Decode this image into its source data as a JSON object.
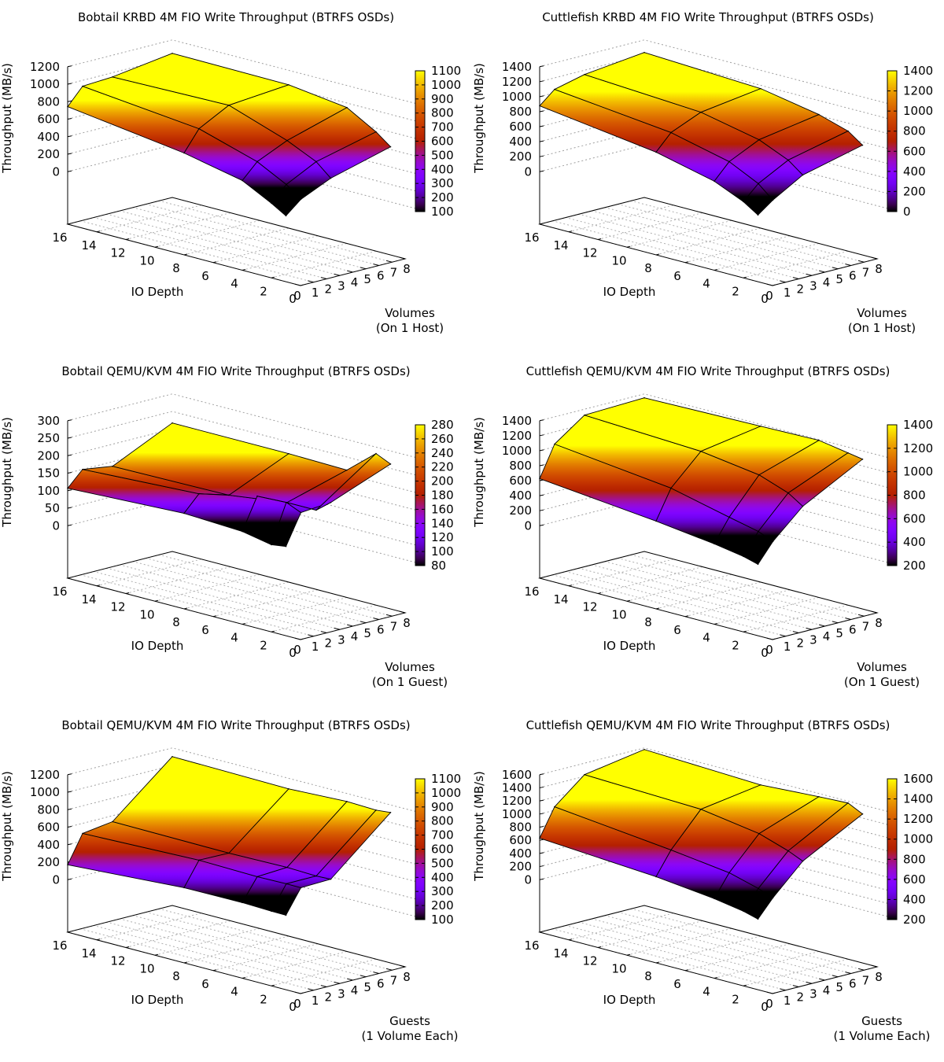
{
  "chart_data": [
    {
      "type": "surface3d",
      "title": "Bobtail KRBD 4M FIO Write Throughput (BTRFS OSDs)",
      "xlabel": "IO Depth",
      "ylabel": [
        "Volumes",
        "(On 1 Host)"
      ],
      "zlabel": "Throughput (MB/s)",
      "x_ticks": [
        "0",
        "2",
        "4",
        "6",
        "8",
        "10",
        "12",
        "14",
        "16"
      ],
      "y_ticks": [
        "0",
        "1",
        "2",
        "3",
        "4",
        "5",
        "6",
        "7",
        "8"
      ],
      "z_ticks": [
        "0",
        "200",
        "400",
        "600",
        "800",
        "1000",
        "1200"
      ],
      "zlim": [
        0,
        1200
      ],
      "cb_ticks": [
        "100",
        "200",
        "300",
        "400",
        "500",
        "600",
        "700",
        "800",
        "900",
        "1000",
        "1100"
      ],
      "cblim": [
        100,
        1100
      ],
      "io_depth": [
        1,
        2,
        4,
        8,
        16
      ],
      "volumes": [
        1,
        2,
        4,
        8
      ],
      "values": [
        [
          153,
          298,
          452,
          636
        ],
        [
          253,
          424,
          597,
          763
        ],
        [
          425,
          597,
          751,
          953
        ],
        [
          564,
          798,
          979,
          1038
        ],
        [
          743,
          933,
          952,
          1047
        ]
      ]
    },
    {
      "type": "surface3d",
      "title": "Cuttlefish KRBD 4M FIO Write Throughput (BTRFS OSDs)",
      "xlabel": "IO Depth",
      "ylabel": [
        "Volumes",
        "(On 1 Host)"
      ],
      "zlabel": "Throughput (MB/s)",
      "x_ticks": [
        "0",
        "2",
        "4",
        "6",
        "8",
        "10",
        "12",
        "14",
        "16"
      ],
      "y_ticks": [
        "0",
        "1",
        "2",
        "3",
        "4",
        "5",
        "6",
        "7",
        "8"
      ],
      "z_ticks": [
        "0",
        "200",
        "400",
        "600",
        "800",
        "1000",
        "1200",
        "1400"
      ],
      "zlim": [
        0,
        1400
      ],
      "cb_ticks": [
        "0",
        "200",
        "400",
        "600",
        "800",
        "1000",
        "1200",
        "1400"
      ],
      "cblim": [
        0,
        1400
      ],
      "io_depth": [
        1,
        2,
        4,
        8,
        16
      ],
      "volumes": [
        1,
        2,
        4,
        8
      ],
      "values": [
        [
          189,
          338,
          570,
          764
        ],
        [
          316,
          506,
          718,
          901
        ],
        [
          486,
          697,
          887,
          1019
        ],
        [
          669,
          880,
          1049,
          1160
        ],
        [
          878,
          1047,
          1143,
          1233
        ]
      ]
    },
    {
      "type": "surface3d",
      "title": "Bobtail QEMU/KVM 4M FIO Write Throughput (BTRFS OSDs)",
      "xlabel": "IO Depth",
      "ylabel": [
        "Volumes",
        "(On 1 Guest)"
      ],
      "zlabel": "Throughput (MB/s)",
      "x_ticks": [
        "0",
        "2",
        "4",
        "6",
        "8",
        "10",
        "12",
        "14",
        "16"
      ],
      "y_ticks": [
        "0",
        "1",
        "2",
        "3",
        "4",
        "5",
        "6",
        "7",
        "8"
      ],
      "z_ticks": [
        "0",
        "50",
        "100",
        "150",
        "200",
        "250",
        "300"
      ],
      "zlim": [
        0,
        300
      ],
      "cb_ticks": [
        "80",
        "100",
        "120",
        "140",
        "160",
        "180",
        "200",
        "220",
        "240",
        "260",
        "280"
      ],
      "cblim": [
        80,
        280
      ],
      "io_depth": [
        1,
        2,
        4,
        8,
        16
      ],
      "volumes": [
        1,
        2,
        4,
        8
      ],
      "values": [
        [
          105,
          191,
          198,
          264
        ],
        [
          99,
          209,
          165,
          283
        ],
        [
          115,
          205,
          165,
          214
        ],
        [
          123,
          168,
          142,
          217
        ],
        [
          107,
          150,
          137,
          217
        ]
      ]
    },
    {
      "type": "surface3d",
      "title": "Cuttlefish QEMU/KVM 4M FIO Write Throughput (BTRFS OSDs)",
      "xlabel": "IO Depth",
      "ylabel": [
        "Volumes",
        "(On 1 Guest)"
      ],
      "zlabel": "Throughput (MB/s)",
      "x_ticks": [
        "0",
        "2",
        "4",
        "6",
        "8",
        "10",
        "12",
        "14",
        "16"
      ],
      "y_ticks": [
        "0",
        "1",
        "2",
        "3",
        "4",
        "5",
        "6",
        "7",
        "8"
      ],
      "z_ticks": [
        "0",
        "200",
        "400",
        "600",
        "800",
        "1000",
        "1200",
        "1400"
      ],
      "zlim": [
        0,
        1400
      ],
      "cb_ticks": [
        "200",
        "400",
        "600",
        "800",
        "1000",
        "1200",
        "1400"
      ],
      "cblim": [
        200,
        1400
      ],
      "io_depth": [
        1,
        2,
        4,
        8,
        16
      ],
      "volumes": [
        1,
        2,
        4,
        8
      ],
      "values": [
        [
          252,
          505,
          873,
          1297
        ],
        [
          306,
          589,
          1000,
          1330
        ],
        [
          371,
          676,
          1138,
          1395
        ],
        [
          470,
          859,
          1248,
          1379
        ],
        [
          627,
          1037,
          1321,
          1348
        ]
      ]
    },
    {
      "type": "surface3d",
      "title": "Bobtail QEMU/KVM 4M FIO Write Throughput (BTRFS OSDs)",
      "xlabel": "IO Depth",
      "ylabel": [
        "Guests",
        "(1 Volume Each)"
      ],
      "zlabel": "Throughput (MB/s)",
      "x_ticks": [
        "0",
        "2",
        "4",
        "6",
        "8",
        "10",
        "12",
        "14",
        "16"
      ],
      "y_ticks": [
        "0",
        "1",
        "2",
        "3",
        "4",
        "5",
        "6",
        "7",
        "8"
      ],
      "z_ticks": [
        "0",
        "200",
        "400",
        "600",
        "800",
        "1000",
        "1200"
      ],
      "zlim": [
        0,
        1200
      ],
      "cb_ticks": [
        "100",
        "200",
        "300",
        "400",
        "500",
        "600",
        "700",
        "800",
        "900",
        "1000",
        "1100"
      ],
      "cblim": [
        100,
        1100
      ],
      "io_depth": [
        1,
        2,
        4,
        8,
        16
      ],
      "guests": [
        1,
        2,
        4,
        8
      ],
      "values": [
        [
          251,
          522,
          532,
          1120
        ],
        [
          253,
          523,
          525,
          1103
        ],
        [
          264,
          516,
          536,
          1114
        ],
        [
          259,
          530,
          523,
          1083
        ],
        [
          170,
          485,
          532,
          1101
        ]
      ]
    },
    {
      "type": "surface3d",
      "title": "Cuttlefish QEMU/KVM 4M FIO Write Throughput (BTRFS OSDs)",
      "xlabel": "IO Depth",
      "ylabel": [
        "Guests",
        "(1 Volume Each)"
      ],
      "zlabel": "Throughput (MB/s)",
      "x_ticks": [
        "0",
        "2",
        "4",
        "6",
        "8",
        "10",
        "12",
        "14",
        "16"
      ],
      "y_ticks": [
        "0",
        "1",
        "2",
        "3",
        "4",
        "5",
        "6",
        "7",
        "8"
      ],
      "z_ticks": [
        "0",
        "200",
        "400",
        "600",
        "800",
        "1000",
        "1200",
        "1400",
        "1600"
      ],
      "zlim": [
        0,
        1600
      ],
      "cb_ticks": [
        "200",
        "400",
        "600",
        "800",
        "1000",
        "1200",
        "1400",
        "1600"
      ],
      "cblim": [
        200,
        1600
      ],
      "io_depth": [
        1,
        2,
        4,
        8,
        16
      ],
      "guests": [
        1,
        2,
        4,
        8
      ],
      "values": [
        [
          276,
          541,
          985,
          1470
        ],
        [
          337,
          626,
          1083,
          1579
        ],
        [
          412,
          749,
          1229,
          1558
        ],
        [
          513,
          862,
          1366,
          1504
        ],
        [
          633,
          1053,
          1426,
          1576
        ]
      ]
    }
  ]
}
